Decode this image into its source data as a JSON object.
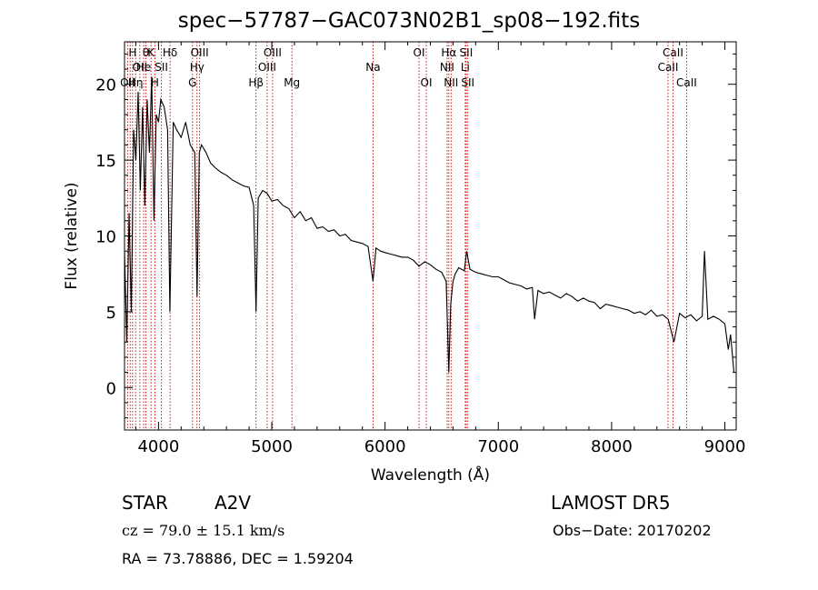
{
  "chart_data": {
    "type": "line",
    "title": "spec−57787−GAC073N02B1_sp08−192.fits",
    "xlabel": "Wavelength (Å)",
    "ylabel": "Flux (relative)",
    "xlim": [
      3700,
      9100
    ],
    "ylim": [
      -2.8,
      22.8
    ],
    "xticks": [
      4000,
      5000,
      6000,
      7000,
      8000,
      9000
    ],
    "yticks": [
      0,
      5,
      10,
      15,
      20
    ],
    "grid": false,
    "line_color": "#000000",
    "marker_color": "#cc0000",
    "series": [
      {
        "x": [
          3700,
          3720,
          3740,
          3760,
          3780,
          3800,
          3820,
          3840,
          3860,
          3880,
          3900,
          3920,
          3940,
          3960,
          3980,
          4000,
          4020,
          4050,
          4080,
          4100,
          4130,
          4160,
          4200,
          4240,
          4280,
          4320,
          4340,
          4360,
          4380,
          4420,
          4460,
          4500,
          4550,
          4600,
          4650,
          4700,
          4750,
          4800,
          4840,
          4861,
          4880,
          4920,
          4960,
          5000,
          5050,
          5100,
          5150,
          5200,
          5250,
          5300,
          5350,
          5400,
          5450,
          5500,
          5550,
          5600,
          5650,
          5700,
          5750,
          5800,
          5850,
          5894,
          5920,
          5960,
          6000,
          6050,
          6100,
          6150,
          6200,
          6250,
          6300,
          6350,
          6400,
          6450,
          6500,
          6540,
          6563,
          6580,
          6600,
          6620,
          6650,
          6700,
          6720,
          6750,
          6800,
          6850,
          6900,
          6950,
          7000,
          7050,
          7100,
          7150,
          7200,
          7250,
          7300,
          7320,
          7350,
          7400,
          7450,
          7500,
          7550,
          7600,
          7650,
          7700,
          7750,
          7800,
          7850,
          7900,
          7950,
          8000,
          8050,
          8100,
          8150,
          8200,
          8250,
          8300,
          8350,
          8400,
          8450,
          8500,
          8550,
          8600,
          8650,
          8700,
          8750,
          8800,
          8820,
          8850,
          8900,
          8950,
          9000,
          9030,
          9050,
          9080
        ],
        "y": [
          9.0,
          3.0,
          11.5,
          5.0,
          17.0,
          15.0,
          19.5,
          13.0,
          18.5,
          12.0,
          19.0,
          15.5,
          20.5,
          11.0,
          18.0,
          17.5,
          19.0,
          18.5,
          17.0,
          5.0,
          17.5,
          17.0,
          16.5,
          17.5,
          16.0,
          15.5,
          6.0,
          15.5,
          16.0,
          15.5,
          14.8,
          14.5,
          14.2,
          14.0,
          13.7,
          13.5,
          13.3,
          13.2,
          12.0,
          5.0,
          12.5,
          13.0,
          12.8,
          12.3,
          12.4,
          12.0,
          11.8,
          11.2,
          11.6,
          11.0,
          11.2,
          10.5,
          10.6,
          10.3,
          10.4,
          10.0,
          10.1,
          9.7,
          9.6,
          9.5,
          9.3,
          7.0,
          9.2,
          9.0,
          8.9,
          8.8,
          8.7,
          8.6,
          8.6,
          8.4,
          8.0,
          8.3,
          8.1,
          7.8,
          7.6,
          7.0,
          1.0,
          5.5,
          7.0,
          7.5,
          7.9,
          7.7,
          9.0,
          7.8,
          7.6,
          7.5,
          7.4,
          7.3,
          7.3,
          7.1,
          6.9,
          6.8,
          6.7,
          6.5,
          6.6,
          4.5,
          6.4,
          6.2,
          6.3,
          6.1,
          5.9,
          6.2,
          6.0,
          5.7,
          5.9,
          5.7,
          5.6,
          5.2,
          5.5,
          5.4,
          5.3,
          5.2,
          5.1,
          4.9,
          5.0,
          4.8,
          5.1,
          4.7,
          4.8,
          4.5,
          3.0,
          4.9,
          4.6,
          4.8,
          4.4,
          4.7,
          9.0,
          4.5,
          4.7,
          4.5,
          4.2,
          2.5,
          3.5,
          1.0
        ]
      }
    ],
    "lines": [
      {
        "x": 3727,
        "tier": 3,
        "label": "OII"
      },
      {
        "x": 3750,
        "tier": 3,
        "label": ""
      },
      {
        "x": 3771,
        "tier": 1,
        "label": "H"
      },
      {
        "x": 3798,
        "tier": 3,
        "label": "Hη"
      },
      {
        "x": 3835,
        "tier": 2,
        "label": "OII"
      },
      {
        "x": 3869,
        "tier": 2,
        "label": "He"
      },
      {
        "x": 3889,
        "tier": 1,
        "label": "θ"
      },
      {
        "x": 3934,
        "tier": 1,
        "label": "K"
      },
      {
        "x": 3968,
        "tier": 3,
        "label": "H"
      },
      {
        "x": 4026,
        "tier": 2,
        "label": "SII"
      },
      {
        "x": 4102,
        "tier": 1,
        "label": "Hδ"
      },
      {
        "x": 4300,
        "tier": 3,
        "label": "G"
      },
      {
        "x": 4340,
        "tier": 2,
        "label": "Hγ"
      },
      {
        "x": 4363,
        "tier": 1,
        "label": "OIII"
      },
      {
        "x": 4861,
        "tier": 3,
        "label": "Hβ"
      },
      {
        "x": 4959,
        "tier": 2,
        "label": "OIII"
      },
      {
        "x": 5007,
        "tier": 1,
        "label": "OIII"
      },
      {
        "x": 5178,
        "tier": 3,
        "label": "Mg"
      },
      {
        "x": 5894,
        "tier": 2,
        "label": "Na"
      },
      {
        "x": 6300,
        "tier": 1,
        "label": "OI"
      },
      {
        "x": 6364,
        "tier": 3,
        "label": "OI"
      },
      {
        "x": 6548,
        "tier": 2,
        "label": "NII"
      },
      {
        "x": 6563,
        "tier": 1,
        "label": "Hα"
      },
      {
        "x": 6583,
        "tier": 3,
        "label": "NII"
      },
      {
        "x": 6708,
        "tier": 2,
        "label": "Li"
      },
      {
        "x": 6716,
        "tier": 1,
        "label": "SII"
      },
      {
        "x": 6731,
        "tier": 3,
        "label": "SII"
      },
      {
        "x": 8498,
        "tier": 2,
        "label": "CaII"
      },
      {
        "x": 8542,
        "tier": 1,
        "label": "CaII"
      },
      {
        "x": 8662,
        "tier": 3,
        "label": "CaII"
      }
    ]
  },
  "info": {
    "object_class": "STAR",
    "subclass": "A2V",
    "survey": "LAMOST  DR5",
    "cz": "cz = 79.0 ± 15.1 km/s",
    "obs_date": "Obs−Date: 20170202",
    "coords": "RA =  73.78886, DEC =    1.59204"
  }
}
